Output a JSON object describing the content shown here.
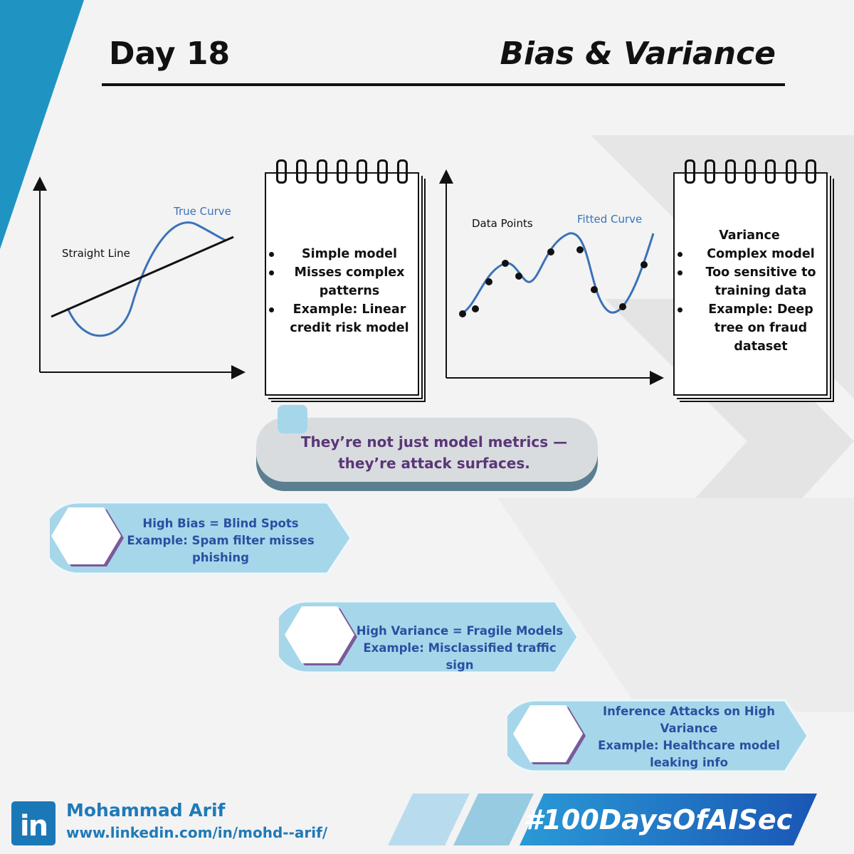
{
  "header": {
    "day": "Day 18",
    "topic": "Bias & Variance"
  },
  "bias_graph": {
    "straight_label": "Straight Line",
    "curve_label": "True Curve"
  },
  "bias_notes": {
    "items": [
      "Simple model",
      "Misses complex patterns",
      "Example: Linear credit risk model"
    ]
  },
  "variance_graph": {
    "points_label": "Data Points",
    "curve_label": "Fitted Curve"
  },
  "variance_notes": {
    "heading": "Variance",
    "items": [
      "Complex model",
      "Too sensitive to training data",
      "Example: Deep tree on fraud dataset"
    ]
  },
  "callout": {
    "line1": "They’re not just model metrics —",
    "line2": "they’re attack surfaces."
  },
  "points": [
    {
      "line1": "High Bias = Blind Spots",
      "line2": "Example: Spam filter misses",
      "line3": "phishing"
    },
    {
      "line1": "High Variance = Fragile Models",
      "line2": "Example: Misclassified traffic sign"
    },
    {
      "line1": "Inference Attacks on High",
      "line2": "Variance",
      "line3": "Example: Healthcare model",
      "line4": "leaking info"
    }
  ],
  "footer": {
    "logo": "in",
    "name": "Mohammad Arif",
    "url": "www.linkedin.com/in/mohd--arif/",
    "hashtag": "#100DaysOfAISec"
  },
  "colors": {
    "accent_blue": "#1f94c2",
    "curve_blue": "#3a72b8",
    "callout_text": "#5a3678",
    "pill_fill": "#a6d6ea",
    "pill_text": "#2a4fa0"
  }
}
